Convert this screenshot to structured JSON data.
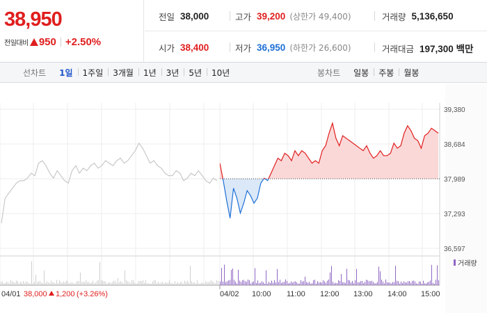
{
  "summary": {
    "current_price": "38,950",
    "change_label": "전일대비",
    "change_amount": "950",
    "change_percent": "+2.50%",
    "prev_close_label": "전일",
    "prev_close": "38,000",
    "high_label": "고가",
    "high": "39,200",
    "upper_limit": "(상한가 49,400)",
    "volume_label": "거래량",
    "volume": "5,136,650",
    "open_label": "시가",
    "open": "38,400",
    "low_label": "저가",
    "low": "36,950",
    "lower_limit": "(하한가 26,600)",
    "turnover_label": "거래대금",
    "turnover": "197,300 백만"
  },
  "period_bar": {
    "line_title": "선차트",
    "line_items": [
      "1일",
      "1주일",
      "3개월",
      "1년",
      "3년",
      "5년",
      "10년"
    ],
    "active_index": 0,
    "candle_title": "봉차트",
    "candle_items": [
      "일봉",
      "주봉",
      "월봉"
    ]
  },
  "colors": {
    "up": "#e01e1e",
    "down": "#1d6fd6",
    "prev_day": "#c4c4c4",
    "volume": "#8f66c4"
  },
  "chart_data": {
    "type": "line",
    "y_ticks": [
      "39,380",
      "38,684",
      "37,989",
      "37,293",
      "36,597"
    ],
    "ylim": [
      36597,
      39380
    ],
    "baseline": 37989,
    "volume_legend": "거래량",
    "x_ticks": [
      "04/02",
      "10:00",
      "11:00",
      "12:00",
      "13:00",
      "14:00",
      "15:00"
    ],
    "prev_day_footer": {
      "date": "04/01",
      "close": "38,000",
      "change": "1,200",
      "pct": "(+3.26%)"
    },
    "prev_day_series": [
      37100,
      37600,
      37700,
      37800,
      37900,
      37950,
      37950,
      38000,
      38100,
      38050,
      38300,
      38350,
      38250,
      38100,
      38000,
      38150,
      38050,
      37950,
      37900,
      38150,
      38250,
      38100,
      38200,
      38150,
      38250,
      38300,
      38200,
      38250,
      38350,
      38300,
      38250,
      38350,
      38400,
      38300,
      38350,
      38450,
      38550,
      38700,
      38600,
      38450,
      38300,
      38350,
      38250,
      38200,
      38100,
      38050,
      38050,
      38150,
      38100,
      37950,
      38000,
      38100,
      38050,
      38150,
      38050,
      37950,
      37900,
      38000,
      37950
    ],
    "today_series": [
      38300,
      37950,
      37550,
      37200,
      37800,
      37600,
      37300,
      37500,
      37750,
      37650,
      37500,
      37600,
      37900,
      38000,
      37950,
      38100,
      38250,
      38400,
      38350,
      38500,
      38450,
      38350,
      38550,
      38450,
      38550,
      38500,
      38400,
      38300,
      38350,
      38300,
      38550,
      38650,
      38900,
      39100,
      38800,
      38650,
      38850,
      38800,
      38750,
      38700,
      38650,
      38600,
      38550,
      38650,
      38500,
      38400,
      38450,
      38550,
      38450,
      38450,
      38500,
      38700,
      38600,
      38650,
      38900,
      39050,
      38950,
      38800,
      38750,
      38600,
      38850,
      38900,
      39000,
      38950,
      38900
    ]
  }
}
